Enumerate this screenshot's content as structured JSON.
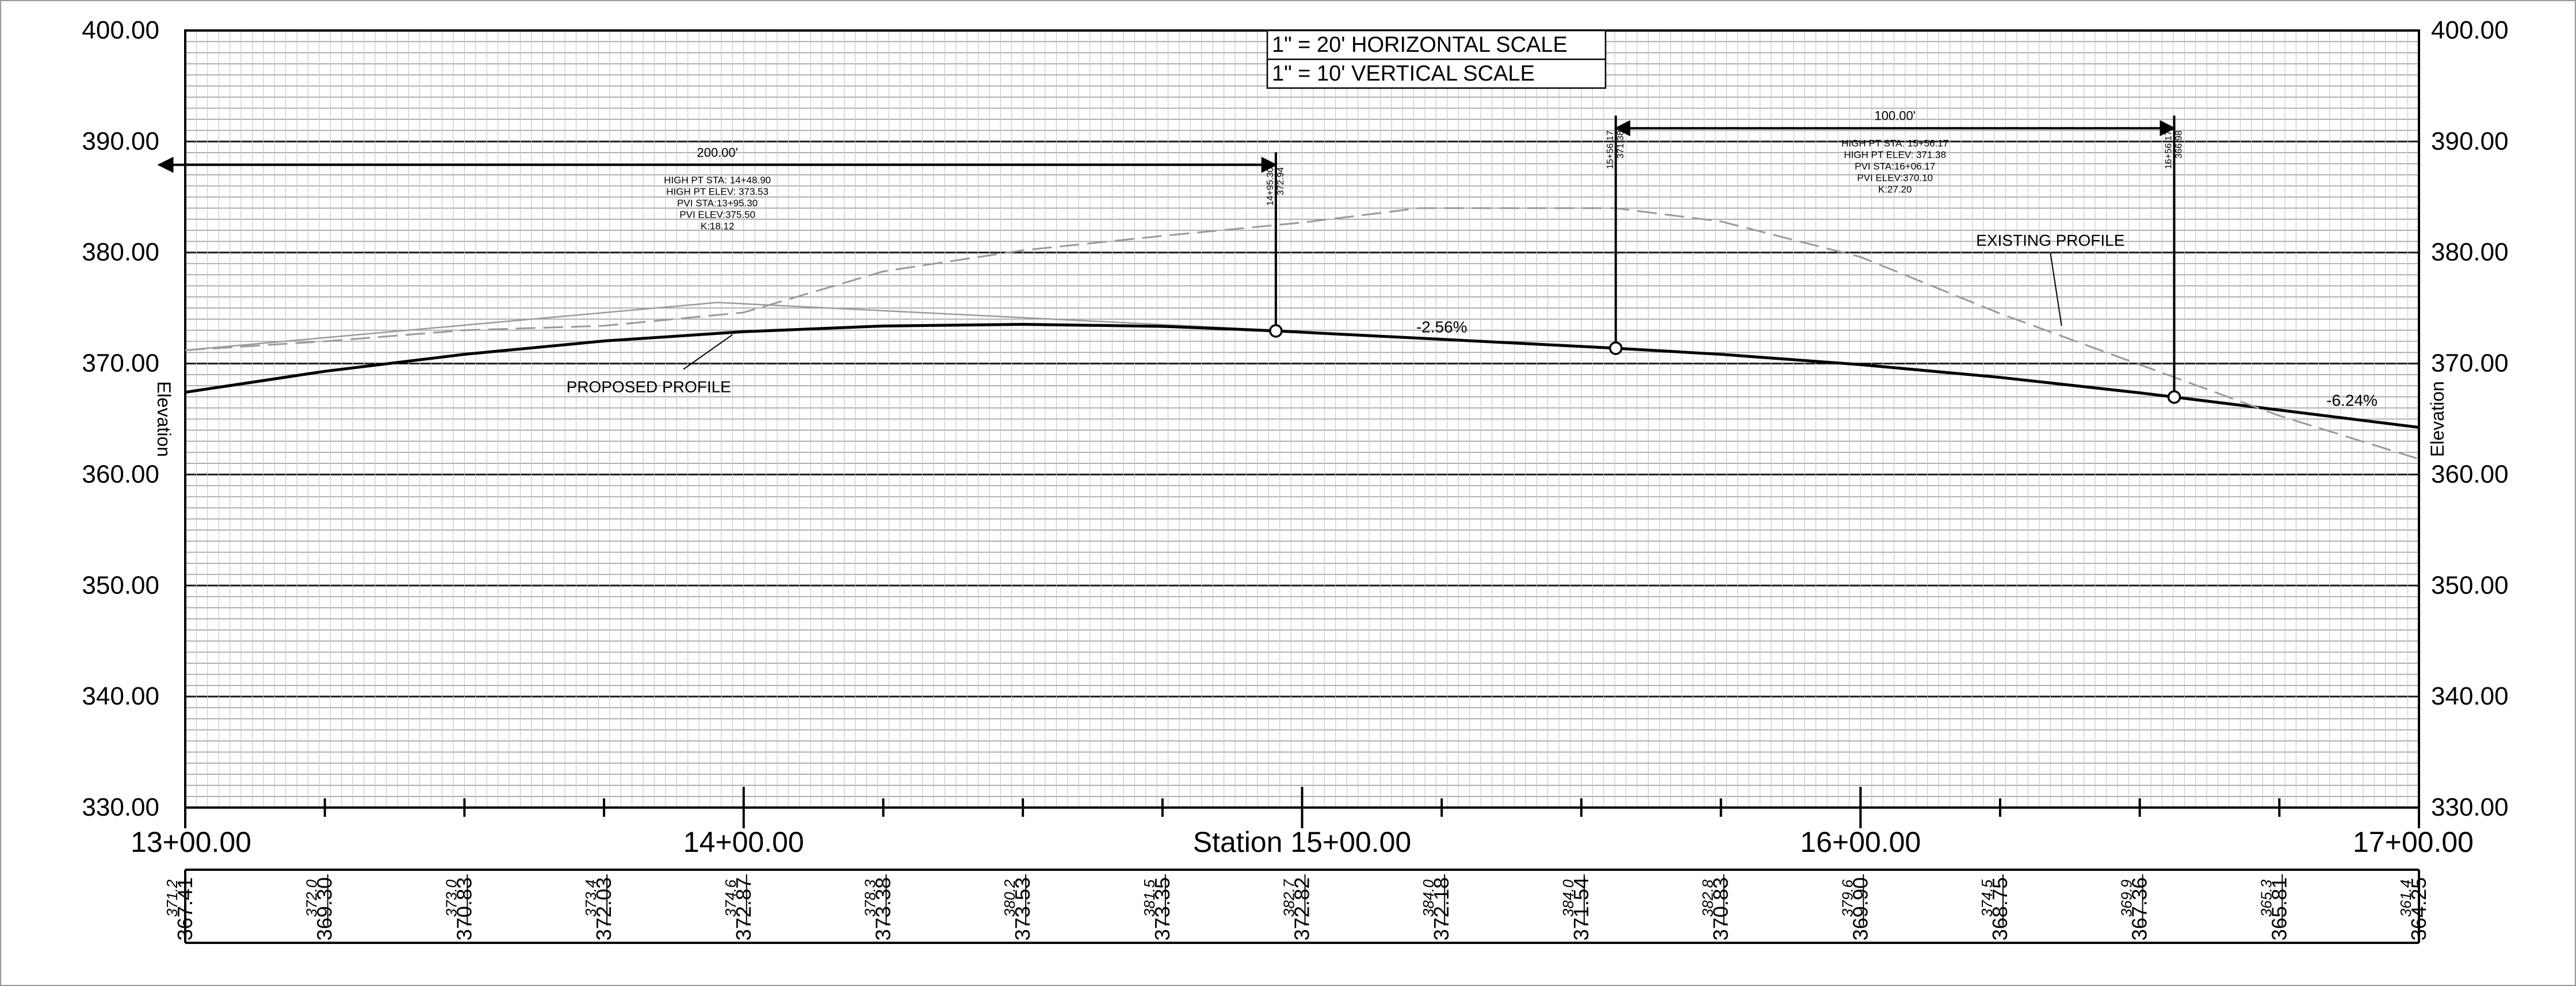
{
  "chart_data": {
    "type": "line",
    "title": "",
    "xlabel": "Station",
    "ylabel": "Elevation",
    "xlim": [
      1300,
      1700
    ],
    "ylim": [
      330,
      400
    ],
    "grid": true,
    "y_ticks": [
      "330.00",
      "340.00",
      "350.00",
      "360.00",
      "370.00",
      "380.00",
      "390.00",
      "400.00"
    ],
    "y_tick_values": [
      330,
      340,
      350,
      360,
      370,
      380,
      390,
      400
    ],
    "x_ticks": [
      {
        "value": 1300,
        "label": "13+00.00"
      },
      {
        "value": 1400,
        "label": "14+00.00"
      },
      {
        "value": 1500,
        "label": "Station 15+00.00"
      },
      {
        "value": 1600,
        "label": "16+00.00"
      },
      {
        "value": 1700,
        "label": "17+00.00"
      }
    ],
    "x_minor_ticks": [
      1325,
      1350,
      1375,
      1425,
      1450,
      1475,
      1525,
      1550,
      1575,
      1625,
      1650,
      1675
    ],
    "scale_note": [
      "1\" = 20' HORIZONTAL SCALE",
      "1\" = 10' VERTICAL SCALE"
    ],
    "series": [
      {
        "name": "PROPOSED PROFILE",
        "style": "solid",
        "color": "#000000",
        "x": [
          1300,
          1325,
          1350,
          1375,
          1400,
          1425,
          1450,
          1475,
          1495.3,
          1500,
          1525,
          1550,
          1556.17,
          1575,
          1600,
          1625,
          1650,
          1656.17,
          1675,
          1700
        ],
        "y": [
          367.41,
          369.3,
          370.83,
          372.03,
          372.87,
          373.38,
          373.53,
          373.35,
          372.94,
          372.82,
          372.18,
          371.54,
          371.38,
          370.83,
          369.9,
          368.75,
          367.36,
          366.98,
          365.81,
          364.25
        ]
      },
      {
        "name": "EXISTING PROFILE",
        "style": "dashed",
        "color": "#9a9a9a",
        "x": [
          1300,
          1325,
          1350,
          1375,
          1400,
          1425,
          1450,
          1475,
          1500,
          1521,
          1556,
          1575,
          1600,
          1625,
          1650,
          1675,
          1700
        ],
        "y": [
          371.2,
          372.0,
          373.0,
          373.4,
          374.6,
          378.3,
          380.2,
          381.5,
          382.7,
          384.0,
          384.0,
          382.8,
          379.6,
          374.5,
          369.9,
          365.3,
          361.4
        ]
      }
    ],
    "tangent_lines": [
      {
        "x": [
          1300,
          1395.3,
          1495.3
        ],
        "y": [
          371.2,
          375.5,
          373.0
        ],
        "color": "#9a9a9a"
      }
    ],
    "vertical_curves": [
      {
        "pvi": {
          "x": 1395.3,
          "y": 375.5
        },
        "length_label": "200.00'",
        "dim_from": 1295.3,
        "dim_to": 1495.3,
        "dim_elev": 387.9,
        "label_lines": [
          "HIGH PT STA: 14+48.90",
          "HIGH PT ELEV: 373.53",
          "PVI STA:13+95.30",
          "PVI ELEV:375.50",
          "K:18.12"
        ],
        "ends": [
          {
            "x": 1495.3,
            "y": 372.94,
            "sta": "14+95.30",
            "elev": "372.94"
          }
        ]
      },
      {
        "pvi": {
          "x": 1606.17,
          "y": 370.1
        },
        "length_label": "100.00'",
        "dim_from": 1556.17,
        "dim_to": 1656.17,
        "dim_elev": 391.2,
        "label_lines": [
          "HIGH PT STA: 15+56.17",
          "HIGH PT ELEV: 371.38",
          "PVI STA:16+06.17",
          "PVI ELEV:370.10",
          "K:27.20"
        ],
        "ends": [
          {
            "x": 1556.17,
            "y": 371.38,
            "sta": "15+56.17",
            "elev": "371.38"
          },
          {
            "x": 1656.17,
            "y": 366.98,
            "sta": "16+56.17",
            "elev": "366.98"
          }
        ]
      }
    ],
    "annotations": [
      {
        "text": "-2.56%",
        "x": 1525,
        "y": 372.8
      },
      {
        "text": "-6.24%",
        "x": 1688,
        "y": 366.2
      },
      {
        "text": "PROPOSED PROFILE",
        "x": 1383,
        "y": 367.4,
        "leader_to": {
          "x": 1398,
          "y": 372.6
        }
      },
      {
        "text": "EXISTING PROFILE",
        "x": 1634,
        "y": 380.6,
        "leader_to": {
          "x": 1636,
          "y": 373.4
        }
      }
    ],
    "station_table": [
      {
        "x": 1300,
        "existing": "371.2",
        "proposed": "367.41"
      },
      {
        "x": 1325,
        "existing": "372.0",
        "proposed": "369.30"
      },
      {
        "x": 1350,
        "existing": "373.0",
        "proposed": "370.83"
      },
      {
        "x": 1375,
        "existing": "373.4",
        "proposed": "372.03"
      },
      {
        "x": 1400,
        "existing": "374.6",
        "proposed": "372.87"
      },
      {
        "x": 1425,
        "existing": "378.3",
        "proposed": "373.38"
      },
      {
        "x": 1450,
        "existing": "380.2",
        "proposed": "373.53"
      },
      {
        "x": 1475,
        "existing": "381.5",
        "proposed": "373.35"
      },
      {
        "x": 1500,
        "existing": "382.7",
        "proposed": "372.82"
      },
      {
        "x": 1525,
        "existing": "384.0",
        "proposed": "372.18"
      },
      {
        "x": 1550,
        "existing": "384.0",
        "proposed": "371.54"
      },
      {
        "x": 1575,
        "existing": "382.8",
        "proposed": "370.83"
      },
      {
        "x": 1600,
        "existing": "379.6",
        "proposed": "369.90"
      },
      {
        "x": 1625,
        "existing": "374.5",
        "proposed": "368.75"
      },
      {
        "x": 1650,
        "existing": "369.9",
        "proposed": "367.36"
      },
      {
        "x": 1675,
        "existing": "365.3",
        "proposed": "365.81"
      },
      {
        "x": 1700,
        "existing": "361.4",
        "proposed": "364.25"
      }
    ]
  }
}
